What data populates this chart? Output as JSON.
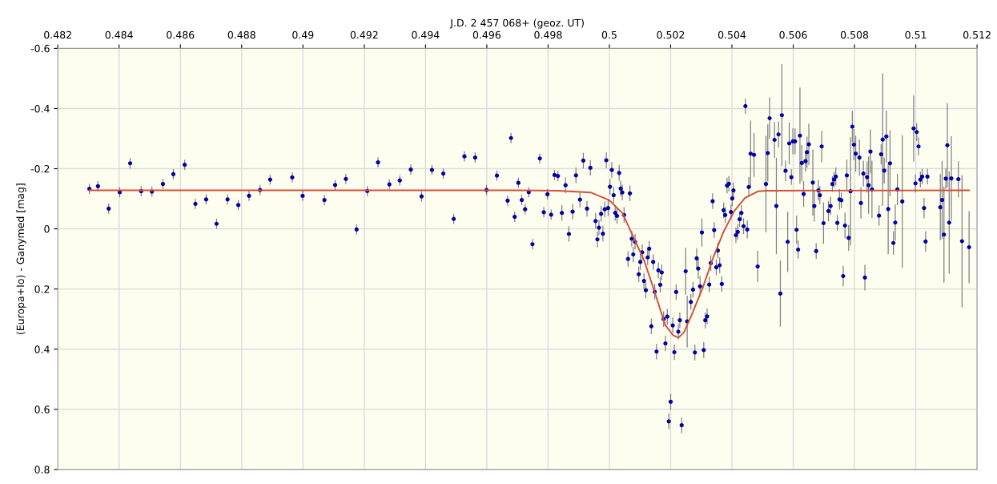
{
  "chart_data": {
    "type": "scatter",
    "xlabel": "J.D. 2 457 068+ (geoz. UT)",
    "ylabel": "(Europa+Io) - Ganymed [mag]",
    "xlim": [
      0.482,
      0.512
    ],
    "xticks": [
      0.482,
      0.484,
      0.486,
      0.488,
      0.49,
      0.492,
      0.494,
      0.496,
      0.498,
      0.5,
      0.502,
      0.504,
      0.506,
      0.508,
      0.51,
      0.512
    ],
    "ylim": [
      0.8,
      -0.6
    ],
    "yticks": [
      -0.6,
      -0.4,
      -0.2,
      0,
      0.2,
      0.4,
      0.6,
      0.8
    ],
    "grid": true,
    "marker": "circle",
    "series": [
      {
        "color": "#0000a8",
        "x": [
          0.48303,
          0.48331,
          0.48366,
          0.48402,
          0.48436,
          0.48472,
          0.48507,
          0.48543,
          0.48577,
          0.48614,
          0.48649,
          0.48684,
          0.48718,
          0.48754,
          0.48789,
          0.48824,
          0.4886,
          0.48893,
          0.48965,
          0.48999,
          0.4907,
          0.49105,
          0.4914,
          0.49175,
          0.4921,
          0.49245,
          0.49282,
          0.49316,
          0.49352,
          0.49387,
          0.49421,
          0.49458,
          0.49492,
          0.49527,
          0.49562,
          0.49599,
          0.49633,
          0.49668,
          0.49679,
          0.49691,
          0.49703,
          0.49714,
          0.49725,
          0.49737,
          0.49749,
          0.49773,
          0.49786,
          0.49798,
          0.4981,
          0.49821,
          0.49832,
          0.49845,
          0.49868,
          0.4988,
          0.49857,
          0.49891,
          0.49904,
          0.49915,
          0.49927,
          0.49938,
          0.49955,
          0.49961,
          0.49966,
          0.49973,
          0.49979,
          0.49985,
          0.4999,
          0.49996,
          0.50002,
          0.50008,
          0.50014,
          0.50019,
          0.50025,
          0.50032,
          0.50037,
          0.50042,
          0.50048,
          0.50067,
          0.50061,
          0.50073,
          0.50078,
          0.50084,
          0.50096,
          0.50101,
          0.50107,
          0.50113,
          0.50119,
          0.50125,
          0.5013,
          0.50137,
          0.50143,
          0.50148,
          0.50154,
          0.5016,
          0.50166,
          0.50171,
          0.50177,
          0.50183,
          0.50189,
          0.50194,
          0.502,
          0.50207,
          0.50212,
          0.50218,
          0.50225,
          0.5023,
          0.50236,
          0.50249,
          0.50254,
          0.50266,
          0.50273,
          0.50279,
          0.50285,
          0.5029,
          0.50296,
          0.50302,
          0.50308,
          0.50313,
          0.50319,
          0.50326,
          0.50331,
          0.50337,
          0.50342,
          0.50349,
          0.50354,
          0.5036,
          0.50367,
          0.50373,
          0.50378,
          0.50384,
          0.5039,
          0.50397,
          0.50401,
          0.50405,
          0.50413,
          0.50419,
          0.50425,
          0.50431,
          0.50438,
          0.50444,
          0.5045,
          0.50455,
          0.50461,
          0.50472,
          0.50484,
          0.50511,
          0.50517,
          0.50523,
          0.50539,
          0.50545,
          0.50552,
          0.50558,
          0.50563,
          0.50575,
          0.50582,
          0.50587,
          0.50594,
          0.50599,
          0.50606,
          0.50611,
          0.50616,
          0.50622,
          0.50628,
          0.50634,
          0.5064,
          0.50645,
          0.50651,
          0.50664,
          0.50669,
          0.50675,
          0.50682,
          0.50687,
          0.50693,
          0.50699,
          0.50715,
          0.50722,
          0.50728,
          0.50733,
          0.50739,
          0.50744,
          0.50751,
          0.50757,
          0.50763,
          0.50769,
          0.50775,
          0.50781,
          0.50787,
          0.50793,
          0.50798,
          0.50804,
          0.50816,
          0.50821,
          0.50829,
          0.50834,
          0.50841,
          0.50846,
          0.50852,
          0.50857,
          0.5088,
          0.50887,
          0.50892,
          0.50897,
          0.50904,
          0.5091,
          0.50916,
          0.50927,
          0.50933,
          0.5094,
          0.50956,
          0.50993,
          0.50999,
          0.51003,
          0.51009,
          0.51015,
          0.51021,
          0.51027,
          0.51032,
          0.51038,
          0.5108,
          0.51086,
          0.51092,
          0.51098,
          0.51103,
          0.51109,
          0.51116,
          0.51139,
          0.51151,
          0.51174
        ],
        "values": [
          -0.133,
          -0.142,
          -0.067,
          -0.122,
          -0.218,
          -0.125,
          -0.124,
          -0.149,
          -0.182,
          -0.213,
          -0.083,
          -0.098,
          -0.017,
          -0.098,
          -0.079,
          -0.11,
          -0.129,
          -0.164,
          -0.171,
          -0.11,
          -0.096,
          -0.146,
          -0.166,
          0.002,
          -0.126,
          -0.221,
          -0.148,
          -0.161,
          -0.197,
          -0.108,
          -0.196,
          -0.184,
          -0.033,
          -0.241,
          -0.237,
          -0.129,
          -0.177,
          -0.094,
          -0.302,
          -0.04,
          -0.153,
          -0.096,
          -0.065,
          -0.122,
          0.051,
          -0.234,
          -0.055,
          -0.115,
          -0.047,
          -0.179,
          -0.176,
          -0.053,
          0.017,
          -0.057,
          -0.145,
          -0.178,
          -0.097,
          -0.227,
          -0.067,
          -0.203,
          -0.026,
          0.035,
          -0.004,
          -0.05,
          0.016,
          -0.065,
          -0.228,
          -0.069,
          -0.14,
          -0.196,
          -0.112,
          -0.053,
          -0.043,
          -0.186,
          -0.134,
          -0.121,
          -0.046,
          -0.118,
          0.1,
          0.033,
          0.085,
          0.043,
          0.151,
          0.11,
          0.078,
          0.173,
          0.204,
          0.095,
          0.066,
          0.324,
          0.11,
          0.209,
          0.408,
          0.138,
          0.186,
          0.145,
          0.3,
          0.381,
          0.292,
          0.64,
          0.575,
          0.321,
          0.41,
          0.21,
          0.342,
          0.304,
          0.653,
          0.141,
          0.308,
          0.243,
          0.202,
          0.411,
          0.098,
          0.132,
          0.191,
          0.012,
          0.403,
          0.304,
          0.291,
          0.185,
          0.114,
          -0.092,
          0.004,
          0.128,
          0.072,
          0.121,
          0.183,
          -0.062,
          -0.046,
          -0.144,
          -0.15,
          -0.056,
          -0.101,
          -0.128,
          0.021,
          0.01,
          -0.032,
          -0.053,
          -0.009,
          -0.408,
          0.002,
          -0.139,
          -0.25,
          -0.246,
          0.125,
          -0.149,
          -0.252,
          -0.368,
          -0.296,
          -0.076,
          -0.314,
          0.215,
          -0.378,
          -0.193,
          0.043,
          -0.284,
          -0.172,
          -0.291,
          -0.291,
          0.003,
          0.069,
          -0.31,
          -0.219,
          -0.116,
          -0.225,
          -0.255,
          -0.281,
          -0.154,
          -0.076,
          0.074,
          -0.128,
          -0.112,
          -0.274,
          -0.019,
          -0.059,
          -0.076,
          -0.149,
          -0.164,
          -0.174,
          -0.02,
          -0.098,
          -0.095,
          0.157,
          -0.011,
          -0.178,
          0.03,
          -0.125,
          -0.34,
          -0.28,
          -0.25,
          -0.237,
          -0.086,
          -0.184,
          0.162,
          -0.172,
          -0.145,
          -0.257,
          -0.131,
          -0.044,
          -0.248,
          -0.297,
          -0.194,
          -0.307,
          -0.066,
          -0.218,
          0.047,
          -0.021,
          -0.131,
          -0.091,
          -0.334,
          -0.151,
          -0.322,
          -0.274,
          -0.164,
          -0.174,
          -0.069,
          0.042,
          -0.174,
          -0.072,
          -0.096,
          0.019,
          -0.167,
          -0.278,
          -0.021,
          -0.168,
          -0.165,
          0.041,
          0.061
        ],
        "errors": [
          0.017,
          0.017,
          0.017,
          0.017,
          0.017,
          0.017,
          0.017,
          0.017,
          0.017,
          0.017,
          0.017,
          0.017,
          0.017,
          0.017,
          0.017,
          0.017,
          0.017,
          0.017,
          0.017,
          0.017,
          0.017,
          0.017,
          0.017,
          0.017,
          0.017,
          0.017,
          0.017,
          0.017,
          0.017,
          0.017,
          0.017,
          0.017,
          0.017,
          0.017,
          0.017,
          0.017,
          0.017,
          0.017,
          0.017,
          0.017,
          0.017,
          0.017,
          0.017,
          0.017,
          0.017,
          0.017,
          0.017,
          0.017,
          0.017,
          0.017,
          0.017,
          0.026,
          0.026,
          0.026,
          0.026,
          0.026,
          0.026,
          0.026,
          0.026,
          0.026,
          0.026,
          0.026,
          0.026,
          0.026,
          0.026,
          0.026,
          0.026,
          0.026,
          0.026,
          0.026,
          0.026,
          0.026,
          0.026,
          0.026,
          0.026,
          0.026,
          0.026,
          0.026,
          0.026,
          0.026,
          0.026,
          0.026,
          0.026,
          0.026,
          0.026,
          0.026,
          0.026,
          0.026,
          0.026,
          0.026,
          0.026,
          0.026,
          0.026,
          0.026,
          0.026,
          0.026,
          0.026,
          0.026,
          0.026,
          0.026,
          0.026,
          0.026,
          0.026,
          0.026,
          0.026,
          0.026,
          0.026,
          0.078,
          0.086,
          0.026,
          0.026,
          0.026,
          0.034,
          0.034,
          0.034,
          0.047,
          0.026,
          0.026,
          0.026,
          0.026,
          0.026,
          0.026,
          0.026,
          0.026,
          0.026,
          0.026,
          0.026,
          0.026,
          0.026,
          0.026,
          0.026,
          0.026,
          0.026,
          0.026,
          0.026,
          0.026,
          0.026,
          0.026,
          0.026,
          0.026,
          0.03,
          0.034,
          0.11,
          0.073,
          0.052,
          0.16,
          0.095,
          0.069,
          0.06,
          0.16,
          0.043,
          0.11,
          0.17,
          0.034,
          0.1,
          0.069,
          0.026,
          0.043,
          0.043,
          0.047,
          0.03,
          0.16,
          0.06,
          0.043,
          0.034,
          0.052,
          0.069,
          0.11,
          0.052,
          0.026,
          0.034,
          0.03,
          0.052,
          0.069,
          0.034,
          0.03,
          0.026,
          0.026,
          0.03,
          0.026,
          0.034,
          0.026,
          0.034,
          0.043,
          0.052,
          0.043,
          0.18,
          0.052,
          0.052,
          0.06,
          0.06,
          0.052,
          0.043,
          0.043,
          0.052,
          0.095,
          0.073,
          0.095,
          0.034,
          0.034,
          0.22,
          0.043,
          0.086,
          0.15,
          0.11,
          0.039,
          0.06,
          0.052,
          0.22,
          0.11,
          0.03,
          0.03,
          0.03,
          0.026,
          0.026,
          0.034,
          0.034,
          0.026,
          0.11,
          0.13,
          0.16,
          0.034,
          0.14,
          0.17,
          0.14,
          0.06,
          0.22,
          0.12
        ]
      },
      {
        "type": "line",
        "color": "#d0503c",
        "marker": "none",
        "x": [
          0.48303,
          0.497,
          0.49835,
          0.49939,
          0.5,
          0.50043,
          0.50078,
          0.50113,
          0.50147,
          0.50182,
          0.50208,
          0.50225,
          0.50243,
          0.50269,
          0.50304,
          0.50339,
          0.50373,
          0.50408,
          0.50443,
          0.50486,
          0.50512,
          0.51174
        ],
        "values": [
          -0.128,
          -0.128,
          -0.127,
          -0.121,
          -0.095,
          -0.052,
          0.026,
          0.104,
          0.207,
          0.319,
          0.354,
          0.362,
          0.345,
          0.285,
          0.198,
          0.095,
          0.009,
          -0.06,
          -0.103,
          -0.125,
          -0.127,
          -0.128
        ]
      }
    ]
  }
}
